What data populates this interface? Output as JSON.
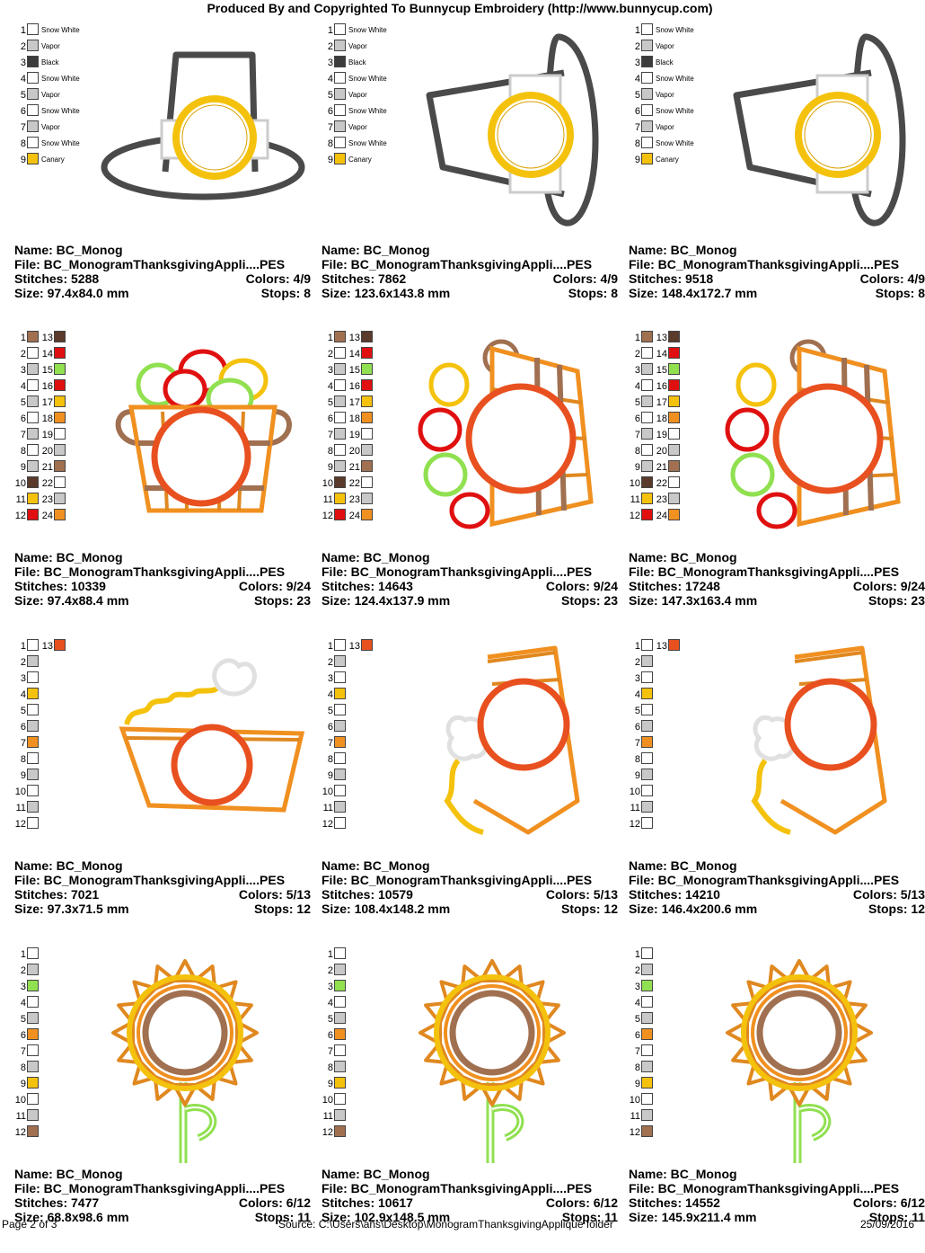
{
  "header": {
    "title": "Produced By and Copyrighted To Bunnycup Embroidery (http://www.bunnycup.com)"
  },
  "colors": {
    "snow_white": "#ffffff",
    "vapor": "#c8c8c8",
    "black": "#3c3c3c",
    "canary": "#f4c20d",
    "brown": "#a07050",
    "dark_brown": "#5a3a2a",
    "red": "#e01010",
    "green": "#90e050",
    "orange": "#f09020",
    "gray": "#c0c0c0"
  },
  "cells": [
    {
      "design": "hat-front",
      "palette": [
        {
          "n": "1",
          "c": "#ffffff",
          "name": "Snow White"
        },
        {
          "n": "2",
          "c": "#c8c8c8",
          "name": "Vapor"
        },
        {
          "n": "3",
          "c": "#3c3c3c",
          "name": "Black"
        },
        {
          "n": "4",
          "c": "#ffffff",
          "name": "Snow White"
        },
        {
          "n": "5",
          "c": "#c8c8c8",
          "name": "Vapor"
        },
        {
          "n": "6",
          "c": "#ffffff",
          "name": "Snow White"
        },
        {
          "n": "7",
          "c": "#c8c8c8",
          "name": "Vapor"
        },
        {
          "n": "8",
          "c": "#ffffff",
          "name": "Snow White"
        },
        {
          "n": "9",
          "c": "#f4c20d",
          "name": "Canary"
        }
      ],
      "info": {
        "name": "Name: BC_Monog",
        "file": "File: BC_MonogramThanksgivingAppli....PES",
        "stitches": "Stitches: 5288",
        "colors": "Colors: 4/9",
        "size": "Size: 97.4x84.0 mm",
        "stops": "Stops: 8"
      }
    },
    {
      "design": "hat-side",
      "palette": [
        {
          "n": "1",
          "c": "#ffffff",
          "name": "Snow White"
        },
        {
          "n": "2",
          "c": "#c8c8c8",
          "name": "Vapor"
        },
        {
          "n": "3",
          "c": "#3c3c3c",
          "name": "Black"
        },
        {
          "n": "4",
          "c": "#ffffff",
          "name": "Snow White"
        },
        {
          "n": "5",
          "c": "#c8c8c8",
          "name": "Vapor"
        },
        {
          "n": "6",
          "c": "#ffffff",
          "name": "Snow White"
        },
        {
          "n": "7",
          "c": "#c8c8c8",
          "name": "Vapor"
        },
        {
          "n": "8",
          "c": "#ffffff",
          "name": "Snow White"
        },
        {
          "n": "9",
          "c": "#f4c20d",
          "name": "Canary"
        }
      ],
      "info": {
        "name": "Name: BC_Monog",
        "file": "File: BC_MonogramThanksgivingAppli....PES",
        "stitches": "Stitches: 7862",
        "colors": "Colors: 4/9",
        "size": "Size: 123.6x143.8 mm",
        "stops": "Stops: 8"
      }
    },
    {
      "design": "hat-side",
      "palette": [
        {
          "n": "1",
          "c": "#ffffff",
          "name": "Snow White"
        },
        {
          "n": "2",
          "c": "#c8c8c8",
          "name": "Vapor"
        },
        {
          "n": "3",
          "c": "#3c3c3c",
          "name": "Black"
        },
        {
          "n": "4",
          "c": "#ffffff",
          "name": "Snow White"
        },
        {
          "n": "5",
          "c": "#c8c8c8",
          "name": "Vapor"
        },
        {
          "n": "6",
          "c": "#ffffff",
          "name": "Snow White"
        },
        {
          "n": "7",
          "c": "#c8c8c8",
          "name": "Vapor"
        },
        {
          "n": "8",
          "c": "#ffffff",
          "name": "Snow White"
        },
        {
          "n": "9",
          "c": "#f4c20d",
          "name": "Canary"
        }
      ],
      "info": {
        "name": "Name: BC_Monog",
        "file": "File: BC_MonogramThanksgivingAppli....PES",
        "stitches": "Stitches: 9518",
        "colors": "Colors: 4/9",
        "size": "Size: 148.4x172.7 mm",
        "stops": "Stops: 8"
      }
    },
    {
      "design": "basket-front",
      "palette": [
        {
          "n": "1",
          "c": "#a07050",
          "n2": "13",
          "c2": "#5a3a2a"
        },
        {
          "n": "2",
          "c": "#ffffff",
          "n2": "14",
          "c2": "#e01010"
        },
        {
          "n": "3",
          "c": "#c8c8c8",
          "n2": "15",
          "c2": "#90e050"
        },
        {
          "n": "4",
          "c": "#ffffff",
          "n2": "16",
          "c2": "#e01010"
        },
        {
          "n": "5",
          "c": "#c8c8c8",
          "n2": "17",
          "c2": "#f4c20d"
        },
        {
          "n": "6",
          "c": "#ffffff",
          "n2": "18",
          "c2": "#f09020"
        },
        {
          "n": "7",
          "c": "#c8c8c8",
          "n2": "19",
          "c2": "#ffffff"
        },
        {
          "n": "8",
          "c": "#ffffff",
          "n2": "20",
          "c2": "#c8c8c8"
        },
        {
          "n": "9",
          "c": "#c8c8c8",
          "n2": "21",
          "c2": "#a07050"
        },
        {
          "n": "10",
          "c": "#5a3a2a",
          "n2": "22",
          "c2": "#ffffff"
        },
        {
          "n": "11",
          "c": "#f4c20d",
          "n2": "23",
          "c2": "#c8c8c8"
        },
        {
          "n": "12",
          "c": "#e01010",
          "n2": "24",
          "c2": "#f09020"
        }
      ],
      "info": {
        "name": "Name: BC_Monog",
        "file": "File: BC_MonogramThanksgivingAppli....PES",
        "stitches": "Stitches: 10339",
        "colors": "Colors: 9/24",
        "size": "Size: 97.4x88.4 mm",
        "stops": "Stops: 23"
      }
    },
    {
      "design": "basket-side",
      "palette": [
        {
          "n": "1",
          "c": "#a07050",
          "n2": "13",
          "c2": "#5a3a2a"
        },
        {
          "n": "2",
          "c": "#ffffff",
          "n2": "14",
          "c2": "#e01010"
        },
        {
          "n": "3",
          "c": "#c8c8c8",
          "n2": "15",
          "c2": "#90e050"
        },
        {
          "n": "4",
          "c": "#ffffff",
          "n2": "16",
          "c2": "#e01010"
        },
        {
          "n": "5",
          "c": "#c8c8c8",
          "n2": "17",
          "c2": "#f4c20d"
        },
        {
          "n": "6",
          "c": "#ffffff",
          "n2": "18",
          "c2": "#f09020"
        },
        {
          "n": "7",
          "c": "#c8c8c8",
          "n2": "19",
          "c2": "#ffffff"
        },
        {
          "n": "8",
          "c": "#ffffff",
          "n2": "20",
          "c2": "#c8c8c8"
        },
        {
          "n": "9",
          "c": "#c8c8c8",
          "n2": "21",
          "c2": "#a07050"
        },
        {
          "n": "10",
          "c": "#5a3a2a",
          "n2": "22",
          "c2": "#ffffff"
        },
        {
          "n": "11",
          "c": "#f4c20d",
          "n2": "23",
          "c2": "#c8c8c8"
        },
        {
          "n": "12",
          "c": "#e01010",
          "n2": "24",
          "c2": "#f09020"
        }
      ],
      "info": {
        "name": "Name: BC_Monog",
        "file": "File: BC_MonogramThanksgivingAppli....PES",
        "stitches": "Stitches: 14643",
        "colors": "Colors: 9/24",
        "size": "Size: 124.4x137.9 mm",
        "stops": "Stops: 23"
      }
    },
    {
      "design": "basket-side",
      "palette": [
        {
          "n": "1",
          "c": "#a07050",
          "n2": "13",
          "c2": "#5a3a2a"
        },
        {
          "n": "2",
          "c": "#ffffff",
          "n2": "14",
          "c2": "#e01010"
        },
        {
          "n": "3",
          "c": "#c8c8c8",
          "n2": "15",
          "c2": "#90e050"
        },
        {
          "n": "4",
          "c": "#ffffff",
          "n2": "16",
          "c2": "#e01010"
        },
        {
          "n": "5",
          "c": "#c8c8c8",
          "n2": "17",
          "c2": "#f4c20d"
        },
        {
          "n": "6",
          "c": "#ffffff",
          "n2": "18",
          "c2": "#f09020"
        },
        {
          "n": "7",
          "c": "#c8c8c8",
          "n2": "19",
          "c2": "#ffffff"
        },
        {
          "n": "8",
          "c": "#ffffff",
          "n2": "20",
          "c2": "#c8c8c8"
        },
        {
          "n": "9",
          "c": "#c8c8c8",
          "n2": "21",
          "c2": "#a07050"
        },
        {
          "n": "10",
          "c": "#5a3a2a",
          "n2": "22",
          "c2": "#ffffff"
        },
        {
          "n": "11",
          "c": "#f4c20d",
          "n2": "23",
          "c2": "#c8c8c8"
        },
        {
          "n": "12",
          "c": "#e01010",
          "n2": "24",
          "c2": "#f09020"
        }
      ],
      "info": {
        "name": "Name: BC_Monog",
        "file": "File: BC_MonogramThanksgivingAppli....PES",
        "stitches": "Stitches: 17248",
        "colors": "Colors: 9/24",
        "size": "Size: 147.3x163.4 mm",
        "stops": "Stops: 23"
      }
    },
    {
      "design": "pie-front",
      "palette": [
        {
          "n": "1",
          "c": "#ffffff",
          "n2": "13",
          "c2": "#e85020"
        },
        {
          "n": "2",
          "c": "#c8c8c8"
        },
        {
          "n": "3",
          "c": "#ffffff"
        },
        {
          "n": "4",
          "c": "#f4c20d"
        },
        {
          "n": "5",
          "c": "#ffffff"
        },
        {
          "n": "6",
          "c": "#c8c8c8"
        },
        {
          "n": "7",
          "c": "#f09020"
        },
        {
          "n": "8",
          "c": "#ffffff"
        },
        {
          "n": "9",
          "c": "#c8c8c8"
        },
        {
          "n": "10",
          "c": "#ffffff"
        },
        {
          "n": "11",
          "c": "#c8c8c8"
        },
        {
          "n": "12",
          "c": "#ffffff"
        }
      ],
      "info": {
        "name": "Name: BC_Monog",
        "file": "File: BC_MonogramThanksgivingAppli....PES",
        "stitches": "Stitches: 7021",
        "colors": "Colors: 5/13",
        "size": "Size: 97.3x71.5 mm",
        "stops": "Stops: 12"
      }
    },
    {
      "design": "pie-side",
      "palette": [
        {
          "n": "1",
          "c": "#ffffff",
          "n2": "13",
          "c2": "#e85020"
        },
        {
          "n": "2",
          "c": "#c8c8c8"
        },
        {
          "n": "3",
          "c": "#ffffff"
        },
        {
          "n": "4",
          "c": "#f4c20d"
        },
        {
          "n": "5",
          "c": "#ffffff"
        },
        {
          "n": "6",
          "c": "#c8c8c8"
        },
        {
          "n": "7",
          "c": "#f09020"
        },
        {
          "n": "8",
          "c": "#ffffff"
        },
        {
          "n": "9",
          "c": "#c8c8c8"
        },
        {
          "n": "10",
          "c": "#ffffff"
        },
        {
          "n": "11",
          "c": "#c8c8c8"
        },
        {
          "n": "12",
          "c": "#ffffff"
        }
      ],
      "info": {
        "name": "Name: BC_Monog",
        "file": "File: BC_MonogramThanksgivingAppli....PES",
        "stitches": "Stitches: 10579",
        "colors": "Colors: 5/13",
        "size": "Size: 108.4x148.2 mm",
        "stops": "Stops: 12"
      }
    },
    {
      "design": "pie-side",
      "palette": [
        {
          "n": "1",
          "c": "#ffffff",
          "n2": "13",
          "c2": "#e85020"
        },
        {
          "n": "2",
          "c": "#c8c8c8"
        },
        {
          "n": "3",
          "c": "#ffffff"
        },
        {
          "n": "4",
          "c": "#f4c20d"
        },
        {
          "n": "5",
          "c": "#ffffff"
        },
        {
          "n": "6",
          "c": "#c8c8c8"
        },
        {
          "n": "7",
          "c": "#f09020"
        },
        {
          "n": "8",
          "c": "#ffffff"
        },
        {
          "n": "9",
          "c": "#c8c8c8"
        },
        {
          "n": "10",
          "c": "#ffffff"
        },
        {
          "n": "11",
          "c": "#c8c8c8"
        },
        {
          "n": "12",
          "c": "#ffffff"
        }
      ],
      "info": {
        "name": "Name: BC_Monog",
        "file": "File: BC_MonogramThanksgivingAppli....PES",
        "stitches": "Stitches: 14210",
        "colors": "Colors: 5/13",
        "size": "Size: 146.4x200.6 mm",
        "stops": "Stops: 12"
      }
    },
    {
      "design": "sunflower",
      "palette": [
        {
          "n": "1",
          "c": "#ffffff"
        },
        {
          "n": "2",
          "c": "#c8c8c8"
        },
        {
          "n": "3",
          "c": "#90e050"
        },
        {
          "n": "4",
          "c": "#ffffff"
        },
        {
          "n": "5",
          "c": "#c8c8c8"
        },
        {
          "n": "6",
          "c": "#f09020"
        },
        {
          "n": "7",
          "c": "#ffffff"
        },
        {
          "n": "8",
          "c": "#c8c8c8"
        },
        {
          "n": "9",
          "c": "#f4c20d"
        },
        {
          "n": "10",
          "c": "#ffffff"
        },
        {
          "n": "11",
          "c": "#c8c8c8"
        },
        {
          "n": "12",
          "c": "#a07050"
        }
      ],
      "info": {
        "name": "Name: BC_Monog",
        "file": "File: BC_MonogramThanksgivingAppli....PES",
        "stitches": "Stitches: 7477",
        "colors": "Colors: 6/12",
        "size": "Size: 68.8x98.6 mm",
        "stops": "Stops: 11"
      }
    },
    {
      "design": "sunflower",
      "palette": [
        {
          "n": "1",
          "c": "#ffffff"
        },
        {
          "n": "2",
          "c": "#c8c8c8"
        },
        {
          "n": "3",
          "c": "#90e050"
        },
        {
          "n": "4",
          "c": "#ffffff"
        },
        {
          "n": "5",
          "c": "#c8c8c8"
        },
        {
          "n": "6",
          "c": "#f09020"
        },
        {
          "n": "7",
          "c": "#ffffff"
        },
        {
          "n": "8",
          "c": "#c8c8c8"
        },
        {
          "n": "9",
          "c": "#f4c20d"
        },
        {
          "n": "10",
          "c": "#ffffff"
        },
        {
          "n": "11",
          "c": "#c8c8c8"
        },
        {
          "n": "12",
          "c": "#a07050"
        }
      ],
      "info": {
        "name": "Name: BC_Monog",
        "file": "File: BC_MonogramThanksgivingAppli....PES",
        "stitches": "Stitches: 10617",
        "colors": "Colors: 6/12",
        "size": "Size: 102.9x148.5 mm",
        "stops": "Stops: 11"
      }
    },
    {
      "design": "sunflower",
      "palette": [
        {
          "n": "1",
          "c": "#ffffff"
        },
        {
          "n": "2",
          "c": "#c8c8c8"
        },
        {
          "n": "3",
          "c": "#90e050"
        },
        {
          "n": "4",
          "c": "#ffffff"
        },
        {
          "n": "5",
          "c": "#c8c8c8"
        },
        {
          "n": "6",
          "c": "#f09020"
        },
        {
          "n": "7",
          "c": "#ffffff"
        },
        {
          "n": "8",
          "c": "#c8c8c8"
        },
        {
          "n": "9",
          "c": "#f4c20d"
        },
        {
          "n": "10",
          "c": "#ffffff"
        },
        {
          "n": "11",
          "c": "#c8c8c8"
        },
        {
          "n": "12",
          "c": "#a07050"
        }
      ],
      "info": {
        "name": "Name: BC_Monog",
        "file": "File: BC_MonogramThanksgivingAppli....PES",
        "stitches": "Stitches: 14552",
        "colors": "Colors: 6/12",
        "size": "Size: 145.9x211.4 mm",
        "stops": "Stops: 11"
      }
    }
  ],
  "footer": {
    "page": "Page 2 of 3",
    "source": "Source: C:\\Users\\ans\\Desktop\\MonogramThanksgivingApplique folder",
    "date": "25/09/2016"
  }
}
